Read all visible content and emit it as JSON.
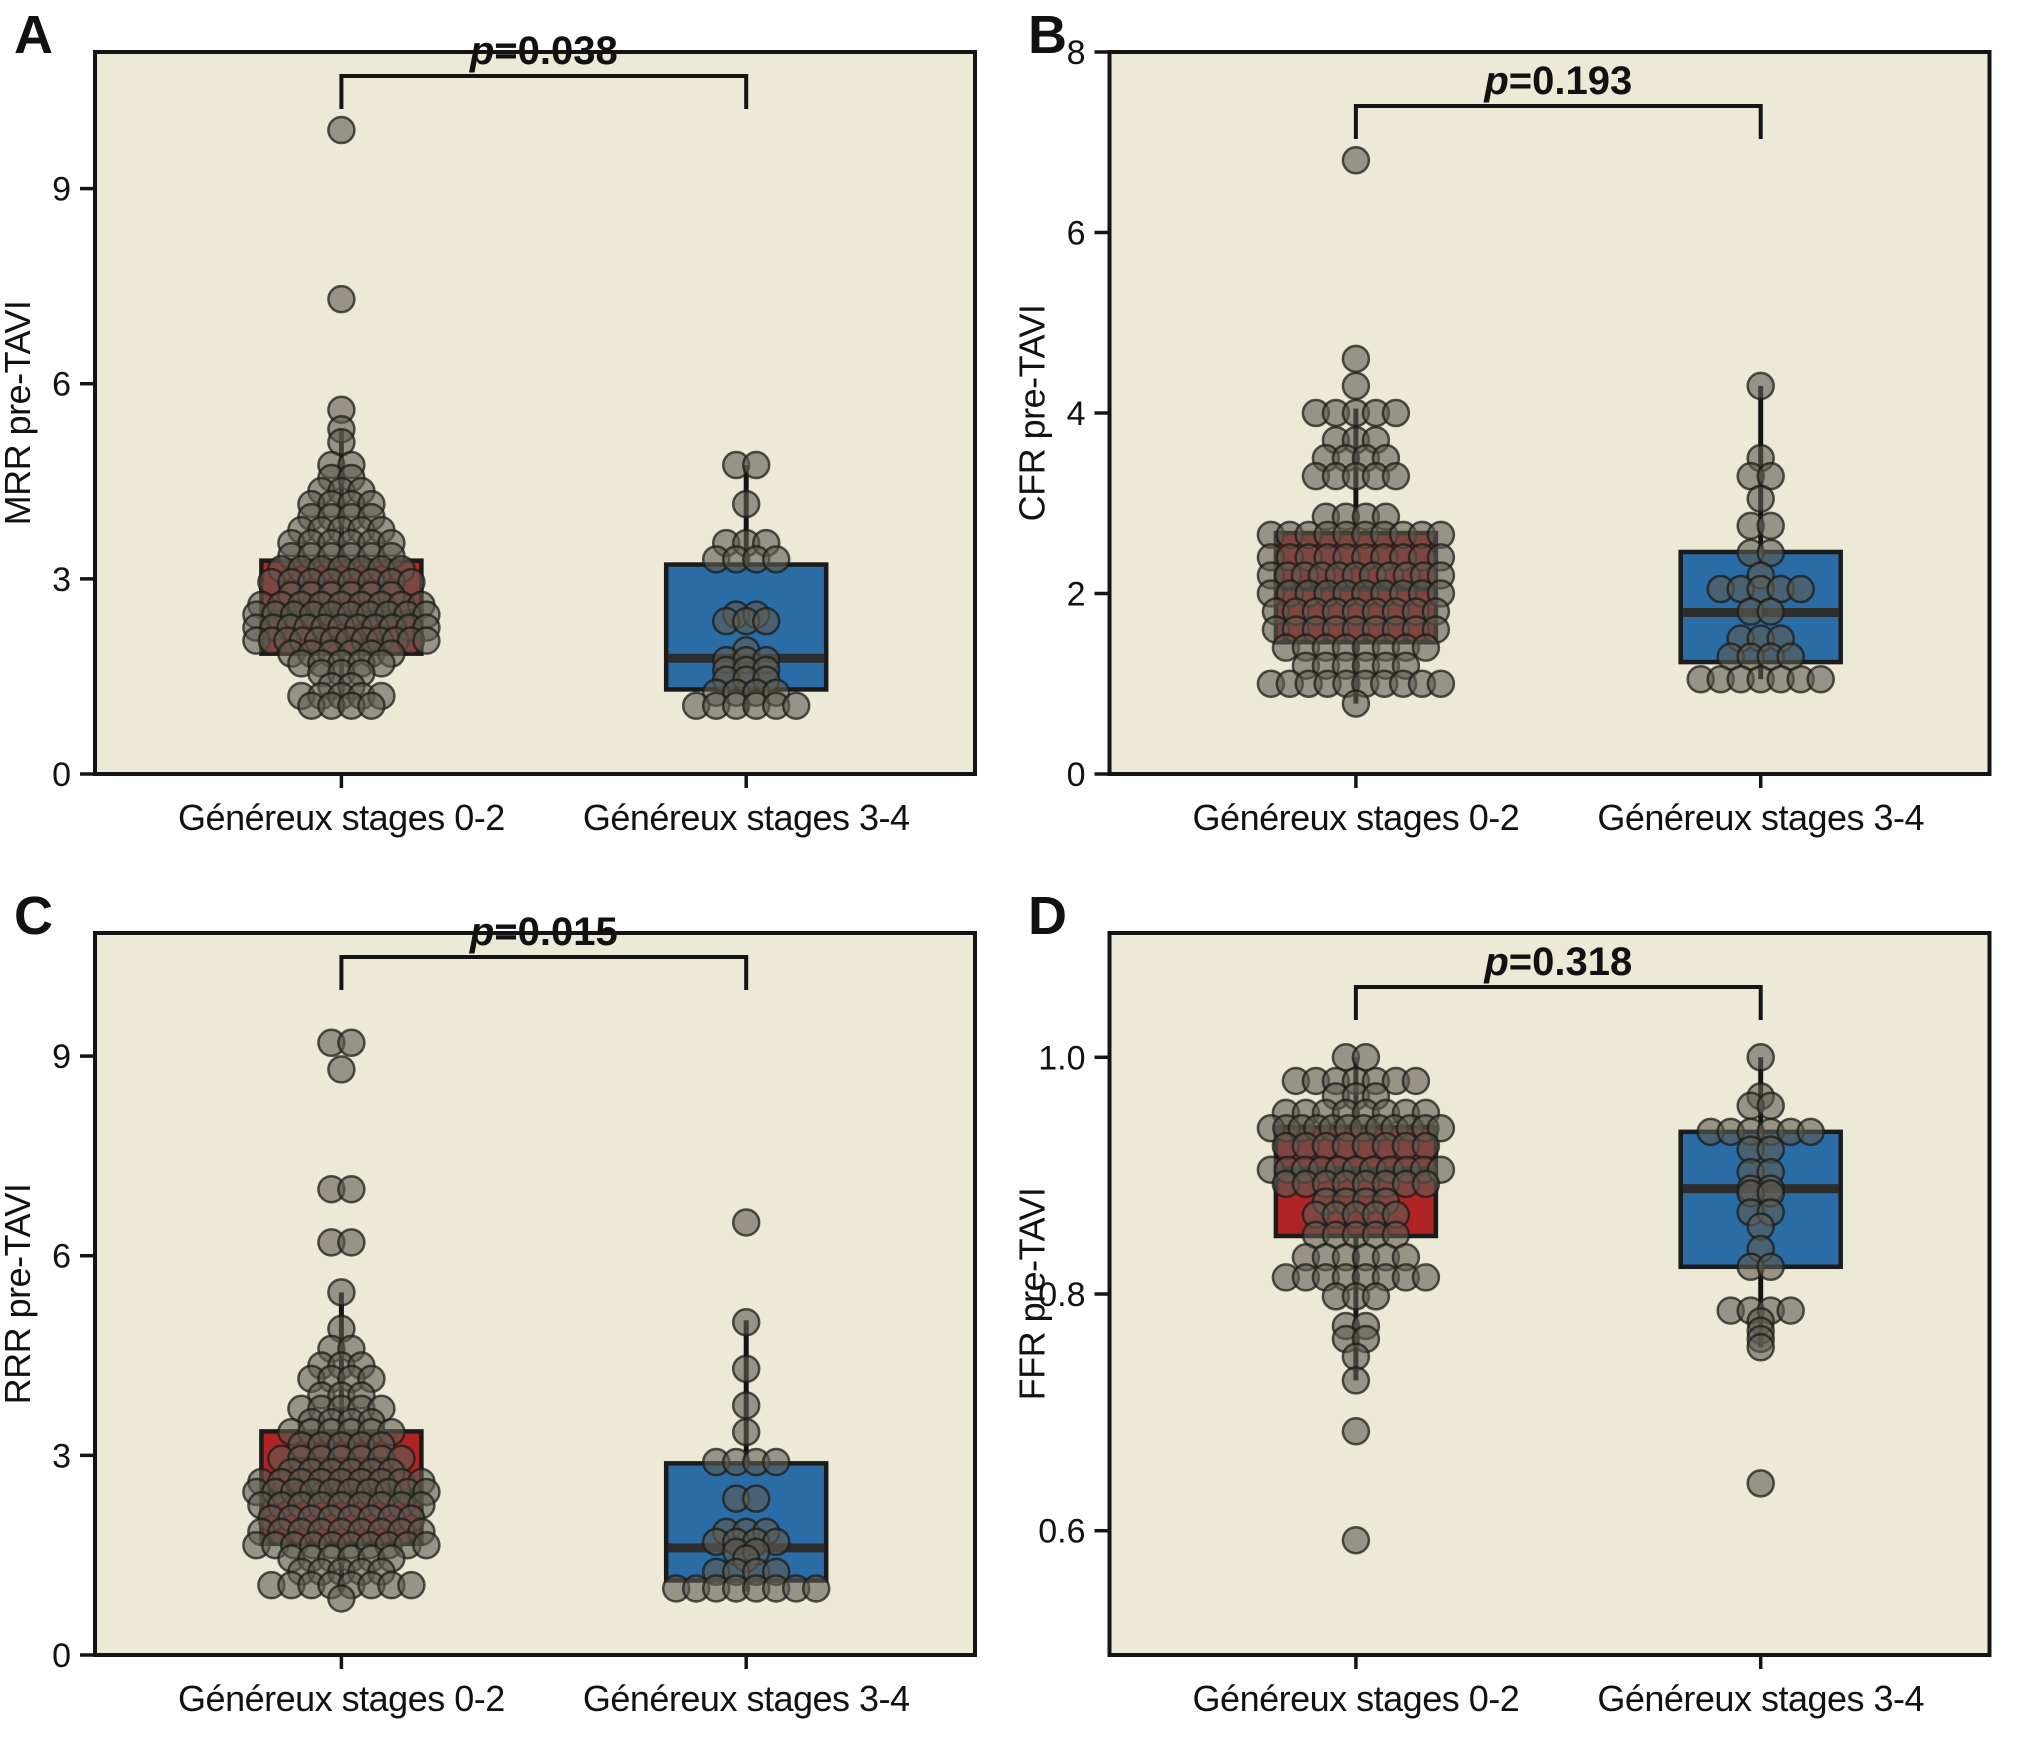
{
  "figure": {
    "background": "#ffffff",
    "plot_bg": "#ece9d6",
    "frame_color": "#141414",
    "group_colors": {
      "stages_0_2": "#b02426",
      "stages_3_4": "#2a6ca6"
    },
    "dot_color": "gray-semi-transparent",
    "x_axis_categories": [
      "Généreux stages 0-2",
      "Généreux stages 3-4"
    ]
  },
  "chart_data": [
    {
      "panel": "A",
      "type": "box+beeswarm",
      "ylabel": "MRR pre-TAVI",
      "p_label": "p=0.038",
      "p_value": 0.038,
      "bracket_y": 76,
      "ylim": [
        0,
        11.1
      ],
      "yticks": [
        0,
        3,
        6,
        9
      ],
      "ytick_labels": [
        "0",
        "3",
        "6",
        "9"
      ],
      "grid": false,
      "groups": [
        {
          "name": "Généreux stages 0-2",
          "color": "#b02426",
          "box": {
            "q1": 1.85,
            "median": 2.45,
            "q3": 3.28,
            "whisker_low": 0.95,
            "whisker_high": 5.3
          },
          "points": [
            9.9,
            7.3,
            5.6,
            5.3,
            5.1,
            4.75,
            4.75,
            4.55,
            4.55,
            4.35,
            4.35,
            4.35,
            4.15,
            4.15,
            4.15,
            4.15,
            3.95,
            3.95,
            3.95,
            3.95,
            3.75,
            3.75,
            3.75,
            3.75,
            3.75,
            3.55,
            3.55,
            3.55,
            3.55,
            3.55,
            3.55,
            3.35,
            3.35,
            3.35,
            3.35,
            3.35,
            3.35,
            3.15,
            3.15,
            3.15,
            3.15,
            3.15,
            3.15,
            3.15,
            2.95,
            2.95,
            2.95,
            2.95,
            2.95,
            2.95,
            2.95,
            2.95,
            2.75,
            2.75,
            2.75,
            2.75,
            2.75,
            2.75,
            2.6,
            2.6,
            2.6,
            2.6,
            2.6,
            2.6,
            2.6,
            2.6,
            2.6,
            2.45,
            2.45,
            2.45,
            2.45,
            2.45,
            2.45,
            2.45,
            2.45,
            2.45,
            2.45,
            2.25,
            2.25,
            2.25,
            2.25,
            2.25,
            2.25,
            2.25,
            2.25,
            2.25,
            2.25,
            2.25,
            2.05,
            2.05,
            2.05,
            2.05,
            2.05,
            2.05,
            2.05,
            2.05,
            2.05,
            2.05,
            2.05,
            2.05,
            1.85,
            1.85,
            1.85,
            1.85,
            1.85,
            1.85,
            1.7,
            1.7,
            1.7,
            1.7,
            1.7,
            1.55,
            1.55,
            1.55,
            1.35,
            1.35,
            1.2,
            1.2,
            1.2,
            1.2,
            1.2,
            1.05,
            1.05,
            1.05,
            1.05
          ]
        },
        {
          "name": "Généreux stages 3-4",
          "color": "#2a6ca6",
          "box": {
            "q1": 1.3,
            "median": 1.78,
            "q3": 3.22,
            "whisker_low": 0.95,
            "whisker_high": 4.75
          },
          "points": [
            4.75,
            4.75,
            4.15,
            3.55,
            3.55,
            3.55,
            3.3,
            3.3,
            3.3,
            3.3,
            2.45,
            2.45,
            2.35,
            2.35,
            2.35,
            1.9,
            1.75,
            1.75,
            1.75,
            1.6,
            1.6,
            1.6,
            1.45,
            1.45,
            1.45,
            1.25,
            1.25,
            1.25,
            1.25,
            1.05,
            1.05,
            1.05,
            1.05,
            1.05,
            1.05
          ]
        }
      ]
    },
    {
      "panel": "B",
      "type": "box+beeswarm",
      "ylabel": "CFR pre-TAVI",
      "p_label": "p=0.193",
      "p_value": 0.193,
      "bracket_y": 106,
      "ylim": [
        0,
        8
      ],
      "yticks": [
        0,
        2,
        4,
        6,
        8
      ],
      "ytick_labels": [
        "0",
        "2",
        "4",
        "6",
        "8"
      ],
      "grid": false,
      "groups": [
        {
          "name": "Généreux stages 0-2",
          "color": "#b02426",
          "box": {
            "q1": 1.46,
            "median": 2.07,
            "q3": 2.67,
            "whisker_low": 0.78,
            "whisker_high": 4.05
          },
          "points": [
            6.8,
            4.6,
            4.3,
            4.0,
            4.0,
            4.0,
            4.0,
            4.0,
            3.7,
            3.7,
            3.7,
            3.5,
            3.5,
            3.5,
            3.5,
            3.3,
            3.3,
            3.3,
            3.3,
            3.3,
            2.85,
            2.85,
            2.85,
            2.85,
            2.65,
            2.65,
            2.65,
            2.65,
            2.65,
            2.65,
            2.65,
            2.65,
            2.65,
            2.65,
            2.4,
            2.4,
            2.4,
            2.4,
            2.4,
            2.4,
            2.4,
            2.4,
            2.4,
            2.4,
            2.2,
            2.2,
            2.2,
            2.2,
            2.2,
            2.2,
            2.2,
            2.2,
            2.2,
            2.2,
            2.2,
            2.0,
            2.0,
            2.0,
            2.0,
            2.0,
            2.0,
            2.0,
            2.0,
            2.0,
            2.0,
            1.8,
            1.8,
            1.8,
            1.8,
            1.8,
            1.8,
            1.8,
            1.8,
            1.8,
            1.6,
            1.6,
            1.6,
            1.6,
            1.6,
            1.6,
            1.6,
            1.6,
            1.6,
            1.4,
            1.4,
            1.4,
            1.4,
            1.4,
            1.4,
            1.4,
            1.4,
            1.2,
            1.2,
            1.2,
            1.2,
            1.2,
            1.2,
            1.0,
            1.0,
            1.0,
            1.0,
            1.0,
            1.0,
            1.0,
            1.0,
            1.0,
            1.0,
            0.78
          ]
        },
        {
          "name": "Généreux stages 3-4",
          "color": "#2a6ca6",
          "box": {
            "q1": 1.24,
            "median": 1.79,
            "q3": 2.46,
            "whisker_low": 1.05,
            "whisker_high": 4.3
          },
          "points": [
            4.3,
            3.5,
            3.3,
            3.3,
            3.05,
            2.75,
            2.75,
            2.45,
            2.45,
            2.2,
            2.05,
            2.05,
            2.05,
            2.05,
            2.05,
            1.8,
            1.8,
            1.5,
            1.5,
            1.5,
            1.3,
            1.3,
            1.3,
            1.3,
            1.05,
            1.05,
            1.05,
            1.05,
            1.05,
            1.05,
            1.05
          ]
        }
      ]
    },
    {
      "panel": "C",
      "type": "box+beeswarm",
      "ylabel": "RRR pre-TAVI",
      "p_label": "p=0.015",
      "p_value": 0.015,
      "bracket_y": 76,
      "ylim": [
        0,
        10.85
      ],
      "yticks": [
        0,
        3,
        6,
        9
      ],
      "ytick_labels": [
        "0",
        "3",
        "6",
        "9"
      ],
      "grid": false,
      "groups": [
        {
          "name": "Généreux stages 0-2",
          "color": "#b02426",
          "box": {
            "q1": 1.67,
            "median": 2.43,
            "q3": 3.36,
            "whisker_low": 0.95,
            "whisker_high": 5.45
          },
          "points": [
            9.2,
            9.2,
            8.8,
            7.0,
            7.0,
            6.2,
            6.2,
            5.45,
            4.9,
            4.6,
            4.6,
            4.35,
            4.35,
            4.35,
            4.15,
            4.15,
            4.15,
            4.15,
            3.9,
            3.9,
            3.9,
            3.7,
            3.7,
            3.7,
            3.7,
            3.7,
            3.5,
            3.5,
            3.5,
            3.5,
            3.35,
            3.35,
            3.35,
            3.35,
            3.35,
            3.35,
            3.15,
            3.15,
            3.15,
            3.15,
            3.15,
            2.95,
            2.95,
            2.95,
            2.95,
            2.95,
            2.95,
            2.95,
            2.75,
            2.75,
            2.75,
            2.75,
            2.75,
            2.75,
            2.6,
            2.6,
            2.6,
            2.6,
            2.6,
            2.6,
            2.6,
            2.6,
            2.6,
            2.45,
            2.45,
            2.45,
            2.45,
            2.45,
            2.45,
            2.45,
            2.45,
            2.45,
            2.45,
            2.25,
            2.25,
            2.25,
            2.25,
            2.25,
            2.25,
            2.25,
            2.25,
            2.25,
            2.05,
            2.05,
            2.05,
            2.05,
            2.05,
            2.05,
            2.05,
            2.05,
            1.85,
            1.85,
            1.85,
            1.85,
            1.85,
            1.85,
            1.85,
            1.85,
            1.85,
            1.65,
            1.65,
            1.65,
            1.65,
            1.65,
            1.65,
            1.65,
            1.65,
            1.65,
            1.65,
            1.45,
            1.45,
            1.45,
            1.45,
            1.45,
            1.45,
            1.25,
            1.25,
            1.25,
            1.25,
            1.25,
            1.05,
            1.05,
            1.05,
            1.05,
            1.05,
            1.05,
            1.05,
            1.05,
            0.85
          ]
        },
        {
          "name": "Généreux stages 3-4",
          "color": "#2a6ca6",
          "box": {
            "q1": 1.12,
            "median": 1.61,
            "q3": 2.88,
            "whisker_low": 0.95,
            "whisker_high": 5.03
          },
          "points": [
            6.5,
            5.0,
            4.3,
            3.75,
            3.35,
            2.9,
            2.9,
            2.9,
            2.9,
            2.35,
            2.35,
            1.85,
            1.85,
            1.85,
            1.7,
            1.7,
            1.7,
            1.7,
            1.55,
            1.55,
            1.45,
            1.25,
            1.25,
            1.25,
            1.25,
            1.0,
            1.0,
            1.0,
            1.0,
            1.0,
            1.0,
            1.0,
            1.0
          ]
        }
      ]
    },
    {
      "panel": "D",
      "type": "box+beeswarm",
      "ylabel": "FFR pre-TAVI",
      "p_label": "p=0.318",
      "p_value": 0.318,
      "bracket_y": 106,
      "ylim": [
        0.495,
        1.105
      ],
      "yticks": [
        0.6,
        0.8,
        1.0
      ],
      "ytick_labels": [
        "0.6",
        "0.8",
        "1.0"
      ],
      "grid": false,
      "groups": [
        {
          "name": "Généreux stages 0-2",
          "color": "#b02426",
          "box": {
            "q1": 0.849,
            "median": 0.904,
            "q3": 0.941,
            "whisker_low": 0.727,
            "whisker_high": 1.0
          },
          "points": [
            1.0,
            1.0,
            0.98,
            0.98,
            0.98,
            0.98,
            0.98,
            0.98,
            0.98,
            0.967,
            0.967,
            0.967,
            0.953,
            0.953,
            0.953,
            0.953,
            0.953,
            0.953,
            0.953,
            0.953,
            0.94,
            0.94,
            0.94,
            0.94,
            0.94,
            0.94,
            0.94,
            0.94,
            0.94,
            0.94,
            0.94,
            0.94,
            0.925,
            0.925,
            0.925,
            0.925,
            0.925,
            0.925,
            0.925,
            0.925,
            0.905,
            0.905,
            0.905,
            0.905,
            0.905,
            0.905,
            0.905,
            0.905,
            0.905,
            0.905,
            0.905,
            0.893,
            0.893,
            0.893,
            0.893,
            0.893,
            0.893,
            0.893,
            0.893,
            0.878,
            0.878,
            0.878,
            0.878,
            0.867,
            0.867,
            0.867,
            0.867,
            0.867,
            0.85,
            0.85,
            0.85,
            0.85,
            0.85,
            0.831,
            0.831,
            0.831,
            0.831,
            0.831,
            0.831,
            0.814,
            0.814,
            0.814,
            0.814,
            0.814,
            0.814,
            0.814,
            0.814,
            0.798,
            0.798,
            0.798,
            0.773,
            0.773,
            0.762,
            0.762,
            0.747,
            0.727,
            0.684,
            0.592
          ]
        },
        {
          "name": "Généreux stages 3-4",
          "color": "#2a6ca6",
          "box": {
            "q1": 0.823,
            "median": 0.889,
            "q3": 0.937,
            "whisker_low": 0.755,
            "whisker_high": 1.0
          },
          "points": [
            1.0,
            0.967,
            0.959,
            0.959,
            0.937,
            0.937,
            0.937,
            0.937,
            0.937,
            0.937,
            0.922,
            0.922,
            0.903,
            0.903,
            0.889,
            0.889,
            0.885,
            0.885,
            0.869,
            0.869,
            0.857,
            0.838,
            0.823,
            0.823,
            0.786,
            0.786,
            0.786,
            0.786,
            0.777,
            0.769,
            0.762,
            0.755,
            0.64
          ]
        }
      ]
    }
  ]
}
